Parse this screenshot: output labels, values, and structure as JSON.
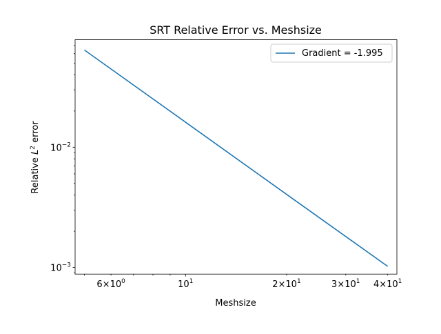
{
  "chart_data": {
    "type": "line",
    "title": "SRT Relative Error vs. Meshsize",
    "xlabel": "Meshsize",
    "ylabel_main": "Relative ",
    "ylabel_L": "L",
    "ylabel_exp": "2",
    "ylabel_tail": " error",
    "xscale": "log",
    "yscale": "log",
    "xlim": [
      4.69,
      42.6
    ],
    "ylim": [
      0.00088,
      0.0783
    ],
    "x_ticks_major": [
      {
        "value": 10,
        "base": "10",
        "exp": "1"
      }
    ],
    "x_ticks_labeled_minor": [
      {
        "value": 6,
        "mant": "6",
        "base": "10",
        "exp": "0"
      },
      {
        "value": 20,
        "mant": "2",
        "base": "10",
        "exp": "1"
      },
      {
        "value": 30,
        "mant": "3",
        "base": "10",
        "exp": "1"
      },
      {
        "value": 40,
        "mant": "4",
        "base": "10",
        "exp": "1"
      }
    ],
    "x_ticks_minor": [
      5,
      7,
      8,
      9
    ],
    "y_ticks_major": [
      {
        "value": 0.001,
        "base": "10",
        "exp": "−3"
      },
      {
        "value": 0.01,
        "base": "10",
        "exp": "−2"
      }
    ],
    "grid": false,
    "legend_position": "upper-right",
    "series": [
      {
        "name": "Gradient = -1.995",
        "color": "#1f77b4",
        "x": [
          5,
          10,
          20,
          40
        ],
        "y": [
          0.0643,
          0.01615,
          0.00405,
          0.00102
        ]
      }
    ]
  }
}
